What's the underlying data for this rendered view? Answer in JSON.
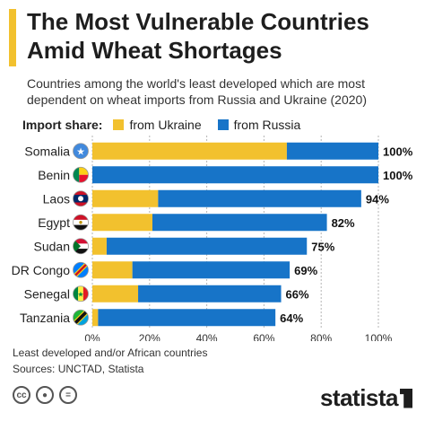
{
  "title": "The Most Vulnerable Countries Amid Wheat Shortages",
  "subtitle": "Countries among the world's least developed which are most dependent on wheat imports from Russia and Ukraine (2020)",
  "legend": {
    "label": "Import share:",
    "ukraine": "from Ukraine",
    "russia": "from Russia"
  },
  "colors": {
    "ukraine": "#f2c12e",
    "russia": "#1774c8",
    "accent": "#f2c12e"
  },
  "footnote": {
    "line1": "Least developed and/or African countries",
    "line2": "Sources: UNCTAD, Statista"
  },
  "license_icons": [
    "cc-icon",
    "attribution-icon",
    "no-derivatives-icon"
  ],
  "brand": "statista",
  "chart_data": {
    "type": "bar",
    "orientation": "horizontal",
    "stacked": true,
    "categories": [
      "Somalia",
      "Benin",
      "Laos",
      "Egypt",
      "Sudan",
      "DR Congo",
      "Senegal",
      "Tanzania"
    ],
    "series": [
      {
        "name": "from Ukraine",
        "values": [
          68,
          0,
          23,
          21,
          5,
          14,
          16,
          2
        ]
      },
      {
        "name": "from Russia",
        "values": [
          32,
          100,
          71,
          61,
          70,
          55,
          50,
          62
        ]
      }
    ],
    "totals": [
      "100%",
      "100%",
      "94%",
      "82%",
      "75%",
      "69%",
      "66%",
      "64%"
    ],
    "x_ticks": [
      "0%",
      "20%",
      "40%",
      "60%",
      "80%",
      "100%"
    ],
    "xlim": [
      0,
      100
    ],
    "flags": [
      "somalia-flag-icon",
      "benin-flag-icon",
      "laos-flag-icon",
      "egypt-flag-icon",
      "sudan-flag-icon",
      "dr-congo-flag-icon",
      "senegal-flag-icon",
      "tanzania-flag-icon"
    ],
    "grid": true
  }
}
